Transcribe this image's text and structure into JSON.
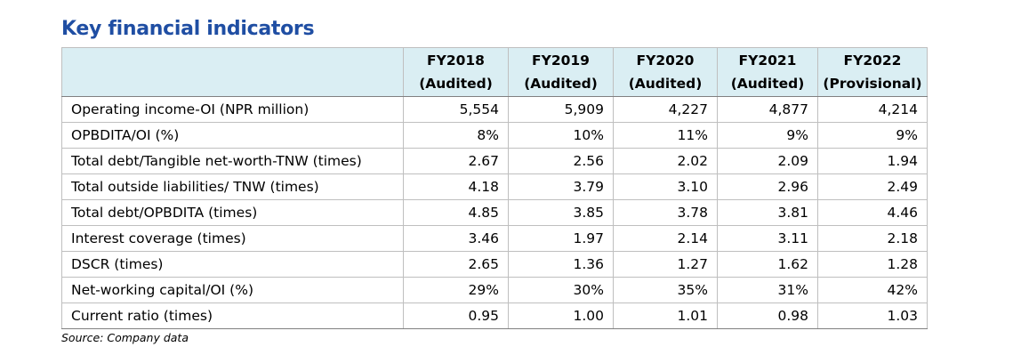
{
  "title": "Key financial indicators",
  "columns": [
    {
      "year": "FY2018",
      "status": "(Audited)"
    },
    {
      "year": "FY2019",
      "status": "(Audited)"
    },
    {
      "year": "FY2020",
      "status": "(Audited)"
    },
    {
      "year": "FY2021",
      "status": "(Audited)"
    },
    {
      "year": "FY2022",
      "status": "(Provisional)"
    }
  ],
  "rows": [
    {
      "label": "Operating income-OI (NPR million)",
      "values": [
        "5,554",
        "5,909",
        "4,227",
        "4,877",
        "4,214"
      ]
    },
    {
      "label": "OPBDITA/OI (%)",
      "values": [
        "8%",
        "10%",
        "11%",
        "9%",
        "9%"
      ]
    },
    {
      "label": "Total debt/Tangible net-worth-TNW (times)",
      "values": [
        "2.67",
        "2.56",
        "2.02",
        "2.09",
        "1.94"
      ]
    },
    {
      "label": "Total outside liabilities/ TNW (times)",
      "values": [
        "4.18",
        "3.79",
        "3.10",
        "2.96",
        "2.49"
      ]
    },
    {
      "label": "Total debt/OPBDITA (times)",
      "values": [
        "4.85",
        "3.85",
        "3.78",
        "3.81",
        "4.46"
      ]
    },
    {
      "label": "Interest coverage (times)",
      "values": [
        "3.46",
        "1.97",
        "2.14",
        "3.11",
        "2.18"
      ]
    },
    {
      "label": "DSCR (times)",
      "values": [
        "2.65",
        "1.36",
        "1.27",
        "1.62",
        "1.28"
      ]
    },
    {
      "label": "Net-working capital/OI (%)",
      "values": [
        "29%",
        "30%",
        "35%",
        "31%",
        "42%"
      ]
    },
    {
      "label": "Current ratio (times)",
      "values": [
        "0.95",
        "1.00",
        "1.01",
        "0.98",
        "1.03"
      ]
    }
  ],
  "source": "Source: Company data",
  "colors": {
    "title": "#1f4ea3",
    "header_bg": "#daeef3",
    "grid": "#bfbfbf"
  }
}
